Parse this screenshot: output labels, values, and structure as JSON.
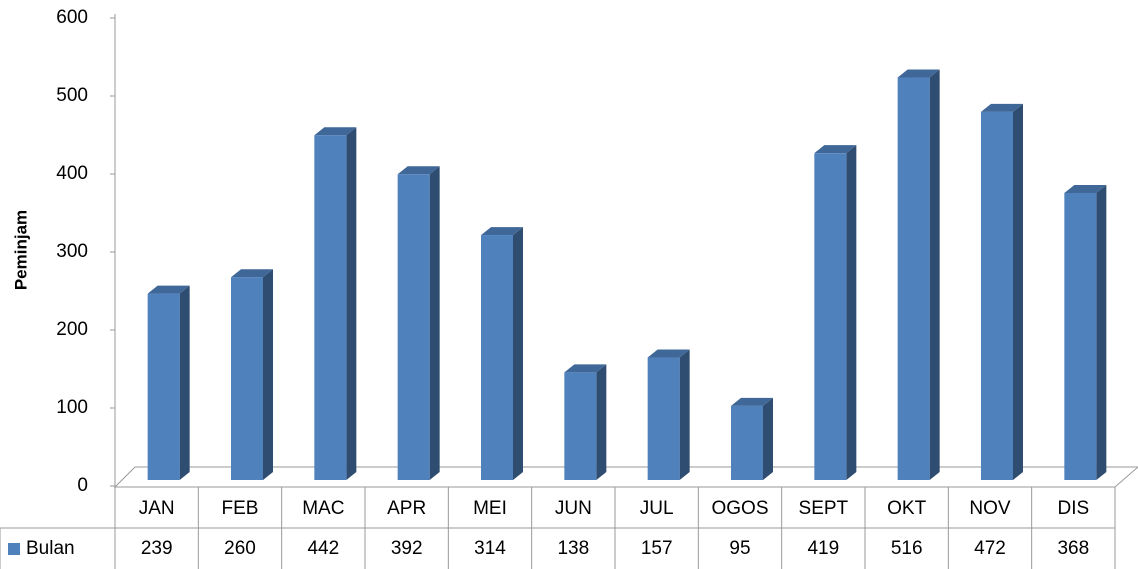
{
  "chart_data": {
    "type": "bar3d",
    "ylabel": "Peminjam",
    "categories": [
      "JAN",
      "FEB",
      "MAC",
      "APR",
      "MEI",
      "JUN",
      "JUL",
      "OGOS",
      "SEPT",
      "OKT",
      "NOV",
      "DIS"
    ],
    "series": [
      {
        "name": "Bulan",
        "color": "#4f81bd",
        "values": [
          239,
          260,
          442,
          392,
          314,
          138,
          157,
          95,
          419,
          516,
          472,
          368
        ]
      }
    ],
    "ylim": [
      0,
      600
    ],
    "yticks": [
      0,
      100,
      200,
      300,
      400,
      500,
      600
    ],
    "grid": false,
    "data_table": true
  }
}
